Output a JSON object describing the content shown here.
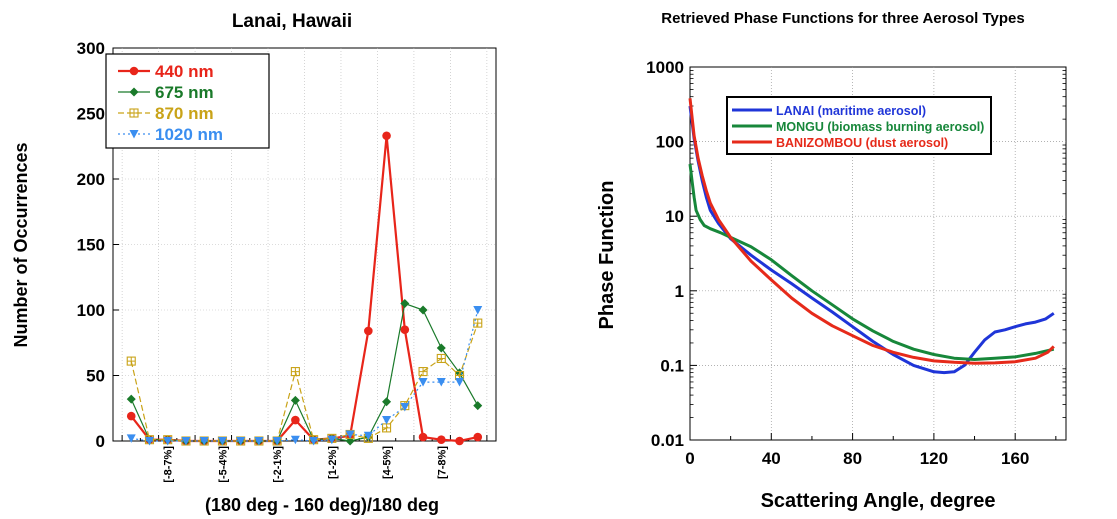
{
  "chart_data": [
    {
      "type": "line",
      "title": "Lanai, Hawaii",
      "xlabel": "(180 deg - 160 deg)/180 deg",
      "ylabel": "Number of Occurrences",
      "ylim": [
        0,
        300
      ],
      "yticks": [
        "0",
        "50",
        "100",
        "150",
        "200",
        "250",
        "300"
      ],
      "x": [
        -9.5,
        -8.5,
        -7.5,
        -6.5,
        -5.5,
        -4.5,
        -3.5,
        -2.5,
        -1.5,
        -0.5,
        0.5,
        1.5,
        2.5,
        3.5,
        4.5,
        5.5,
        6.5,
        7.5,
        8.5,
        9.5
      ],
      "xlim": [
        -10.5,
        10.5
      ],
      "xtick_labels": [
        {
          "x": -7.5,
          "label": "[-8-7%]"
        },
        {
          "x": -4.5,
          "label": "[-5-4%]"
        },
        {
          "x": -1.5,
          "label": "[-2-1%]"
        },
        {
          "x": 1.5,
          "label": "[1-2%]"
        },
        {
          "x": 4.5,
          "label": "[4-5%]"
        },
        {
          "x": 7.5,
          "label": "[7-8%]"
        }
      ],
      "grid": true,
      "legend_position": "top-left",
      "series": [
        {
          "name": "440 nm",
          "color": "#e8251a",
          "marker": "circle",
          "dash": "solid",
          "width": 2.2,
          "values": [
            19,
            1,
            1,
            0,
            0,
            0,
            0,
            0,
            0,
            16,
            1,
            2,
            4,
            84,
            233,
            85,
            3,
            1,
            0,
            3
          ]
        },
        {
          "name": "675 nm",
          "color": "#1a7a2a",
          "marker": "diamond",
          "dash": "solid",
          "width": 1.2,
          "values": [
            32,
            1,
            1,
            0,
            0,
            0,
            0,
            0,
            0,
            31,
            1,
            2,
            0,
            3,
            30,
            105,
            100,
            71,
            52,
            27
          ]
        },
        {
          "name": "870 nm",
          "color": "#c9a318",
          "marker": "square-plus",
          "dash": "dashed",
          "width": 1.2,
          "values": [
            61,
            1,
            1,
            0,
            0,
            0,
            0,
            0,
            0,
            53,
            1,
            2,
            5,
            2,
            10,
            27,
            53,
            63,
            50,
            90
          ]
        },
        {
          "name": "1020 nm",
          "color": "#3a8ef0",
          "marker": "triangle-down",
          "dash": "dotted",
          "width": 1.2,
          "values": [
            2,
            0,
            0,
            0,
            0,
            0,
            0,
            0,
            0,
            1,
            0,
            1,
            5,
            4,
            16,
            26,
            45,
            45,
            45,
            100
          ]
        }
      ]
    },
    {
      "type": "line",
      "title": "Retrieved Phase Functions for three Aerosol Types",
      "xlabel": "Scattering Angle, degree",
      "ylabel": "Phase Function",
      "xlim": [
        0,
        185
      ],
      "xticks": [
        0,
        40,
        80,
        120,
        160
      ],
      "ylim": [
        0.01,
        1000
      ],
      "yscale": "log",
      "yticks": [
        "0.01",
        "0.1",
        "1",
        "10",
        "100",
        "1000"
      ],
      "grid": true,
      "legend_position": "top-right",
      "series": [
        {
          "name": "LANAI (maritime aerosol)",
          "color": "#1f35d8",
          "x": [
            0,
            2,
            4,
            6,
            8,
            10,
            14,
            20,
            30,
            40,
            50,
            60,
            70,
            80,
            90,
            100,
            110,
            120,
            125,
            130,
            135,
            140,
            145,
            150,
            155,
            160,
            165,
            170,
            175,
            179
          ],
          "y": [
            300,
            110,
            55,
            30,
            18,
            12,
            8,
            5,
            3,
            1.9,
            1.25,
            0.8,
            0.52,
            0.33,
            0.21,
            0.14,
            0.1,
            0.082,
            0.08,
            0.082,
            0.1,
            0.15,
            0.22,
            0.28,
            0.3,
            0.33,
            0.36,
            0.38,
            0.42,
            0.5
          ]
        },
        {
          "name": "MONGU (biomass burning aerosol)",
          "color": "#17873a",
          "x": [
            0,
            1,
            2,
            3,
            5,
            7,
            10,
            15,
            20,
            30,
            40,
            50,
            60,
            70,
            80,
            90,
            100,
            110,
            120,
            130,
            140,
            150,
            160,
            170,
            179
          ],
          "y": [
            50,
            30,
            18,
            12,
            9,
            7.5,
            6.8,
            6,
            5.2,
            3.9,
            2.6,
            1.6,
            1.0,
            0.65,
            0.42,
            0.29,
            0.21,
            0.165,
            0.14,
            0.125,
            0.12,
            0.125,
            0.13,
            0.145,
            0.165
          ]
        },
        {
          "name": "BANIZOMBOU (dust aerosol)",
          "color": "#e62a1a",
          "x": [
            0,
            2,
            4,
            6,
            8,
            10,
            14,
            20,
            30,
            40,
            50,
            60,
            70,
            80,
            90,
            100,
            110,
            120,
            130,
            140,
            150,
            160,
            170,
            176,
            179
          ],
          "y": [
            380,
            120,
            60,
            35,
            22,
            15,
            9,
            5.2,
            2.5,
            1.4,
            0.8,
            0.5,
            0.34,
            0.25,
            0.185,
            0.15,
            0.128,
            0.115,
            0.11,
            0.107,
            0.108,
            0.112,
            0.125,
            0.15,
            0.18
          ]
        }
      ]
    }
  ]
}
